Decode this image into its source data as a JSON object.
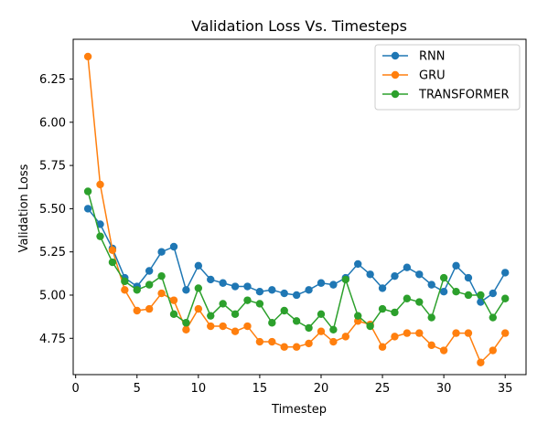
{
  "chart_data": {
    "type": "line",
    "title": "Validation Loss Vs. Timesteps",
    "xlabel": "Timestep",
    "ylabel": "Validation Loss",
    "xlim": [
      -0.2,
      36.7
    ],
    "ylim": [
      4.54,
      6.48
    ],
    "xticks": [
      0,
      5,
      10,
      15,
      20,
      25,
      30,
      35
    ],
    "yticks": [
      4.75,
      5.0,
      5.25,
      5.5,
      5.75,
      6.0,
      6.25
    ],
    "ytick_labels": [
      "4.75",
      "5.00",
      "5.25",
      "5.50",
      "5.75",
      "6.00",
      "6.25"
    ],
    "grid": false,
    "legend_position": "top-right",
    "x": [
      1,
      2,
      3,
      4,
      5,
      6,
      7,
      8,
      9,
      10,
      11,
      12,
      13,
      14,
      15,
      16,
      17,
      18,
      19,
      20,
      21,
      22,
      23,
      24,
      25,
      26,
      27,
      28,
      29,
      30,
      31,
      32,
      33,
      34,
      35
    ],
    "series": [
      {
        "name": "RNN",
        "color": "#1f77b4",
        "values": [
          5.5,
          5.41,
          5.27,
          5.1,
          5.05,
          5.14,
          5.25,
          5.28,
          5.03,
          5.17,
          5.09,
          5.07,
          5.05,
          5.05,
          5.02,
          5.03,
          5.01,
          5.0,
          5.03,
          5.07,
          5.06,
          5.1,
          5.18,
          5.12,
          5.04,
          5.11,
          5.16,
          5.12,
          5.06,
          5.02,
          5.17,
          5.1,
          4.96,
          5.01,
          5.13
        ]
      },
      {
        "name": "GRU",
        "color": "#ff7f0e",
        "values": [
          6.38,
          5.64,
          5.26,
          5.03,
          4.91,
          4.92,
          5.01,
          4.97,
          4.8,
          4.92,
          4.82,
          4.82,
          4.79,
          4.82,
          4.73,
          4.73,
          4.7,
          4.7,
          4.72,
          4.79,
          4.73,
          4.76,
          4.85,
          4.83,
          4.7,
          4.76,
          4.78,
          4.78,
          4.71,
          4.68,
          4.78,
          4.78,
          4.61,
          4.68,
          4.78
        ]
      },
      {
        "name": "TRANSFORMER",
        "color": "#2ca02c",
        "values": [
          5.6,
          5.34,
          5.19,
          5.08,
          5.03,
          5.06,
          5.11,
          4.89,
          4.84,
          5.04,
          4.88,
          4.95,
          4.89,
          4.97,
          4.95,
          4.84,
          4.91,
          4.85,
          4.81,
          4.89,
          4.8,
          5.09,
          4.88,
          4.82,
          4.92,
          4.9,
          4.98,
          4.96,
          4.87,
          5.1,
          5.02,
          5.0,
          5.0,
          4.87,
          4.98
        ]
      }
    ]
  }
}
